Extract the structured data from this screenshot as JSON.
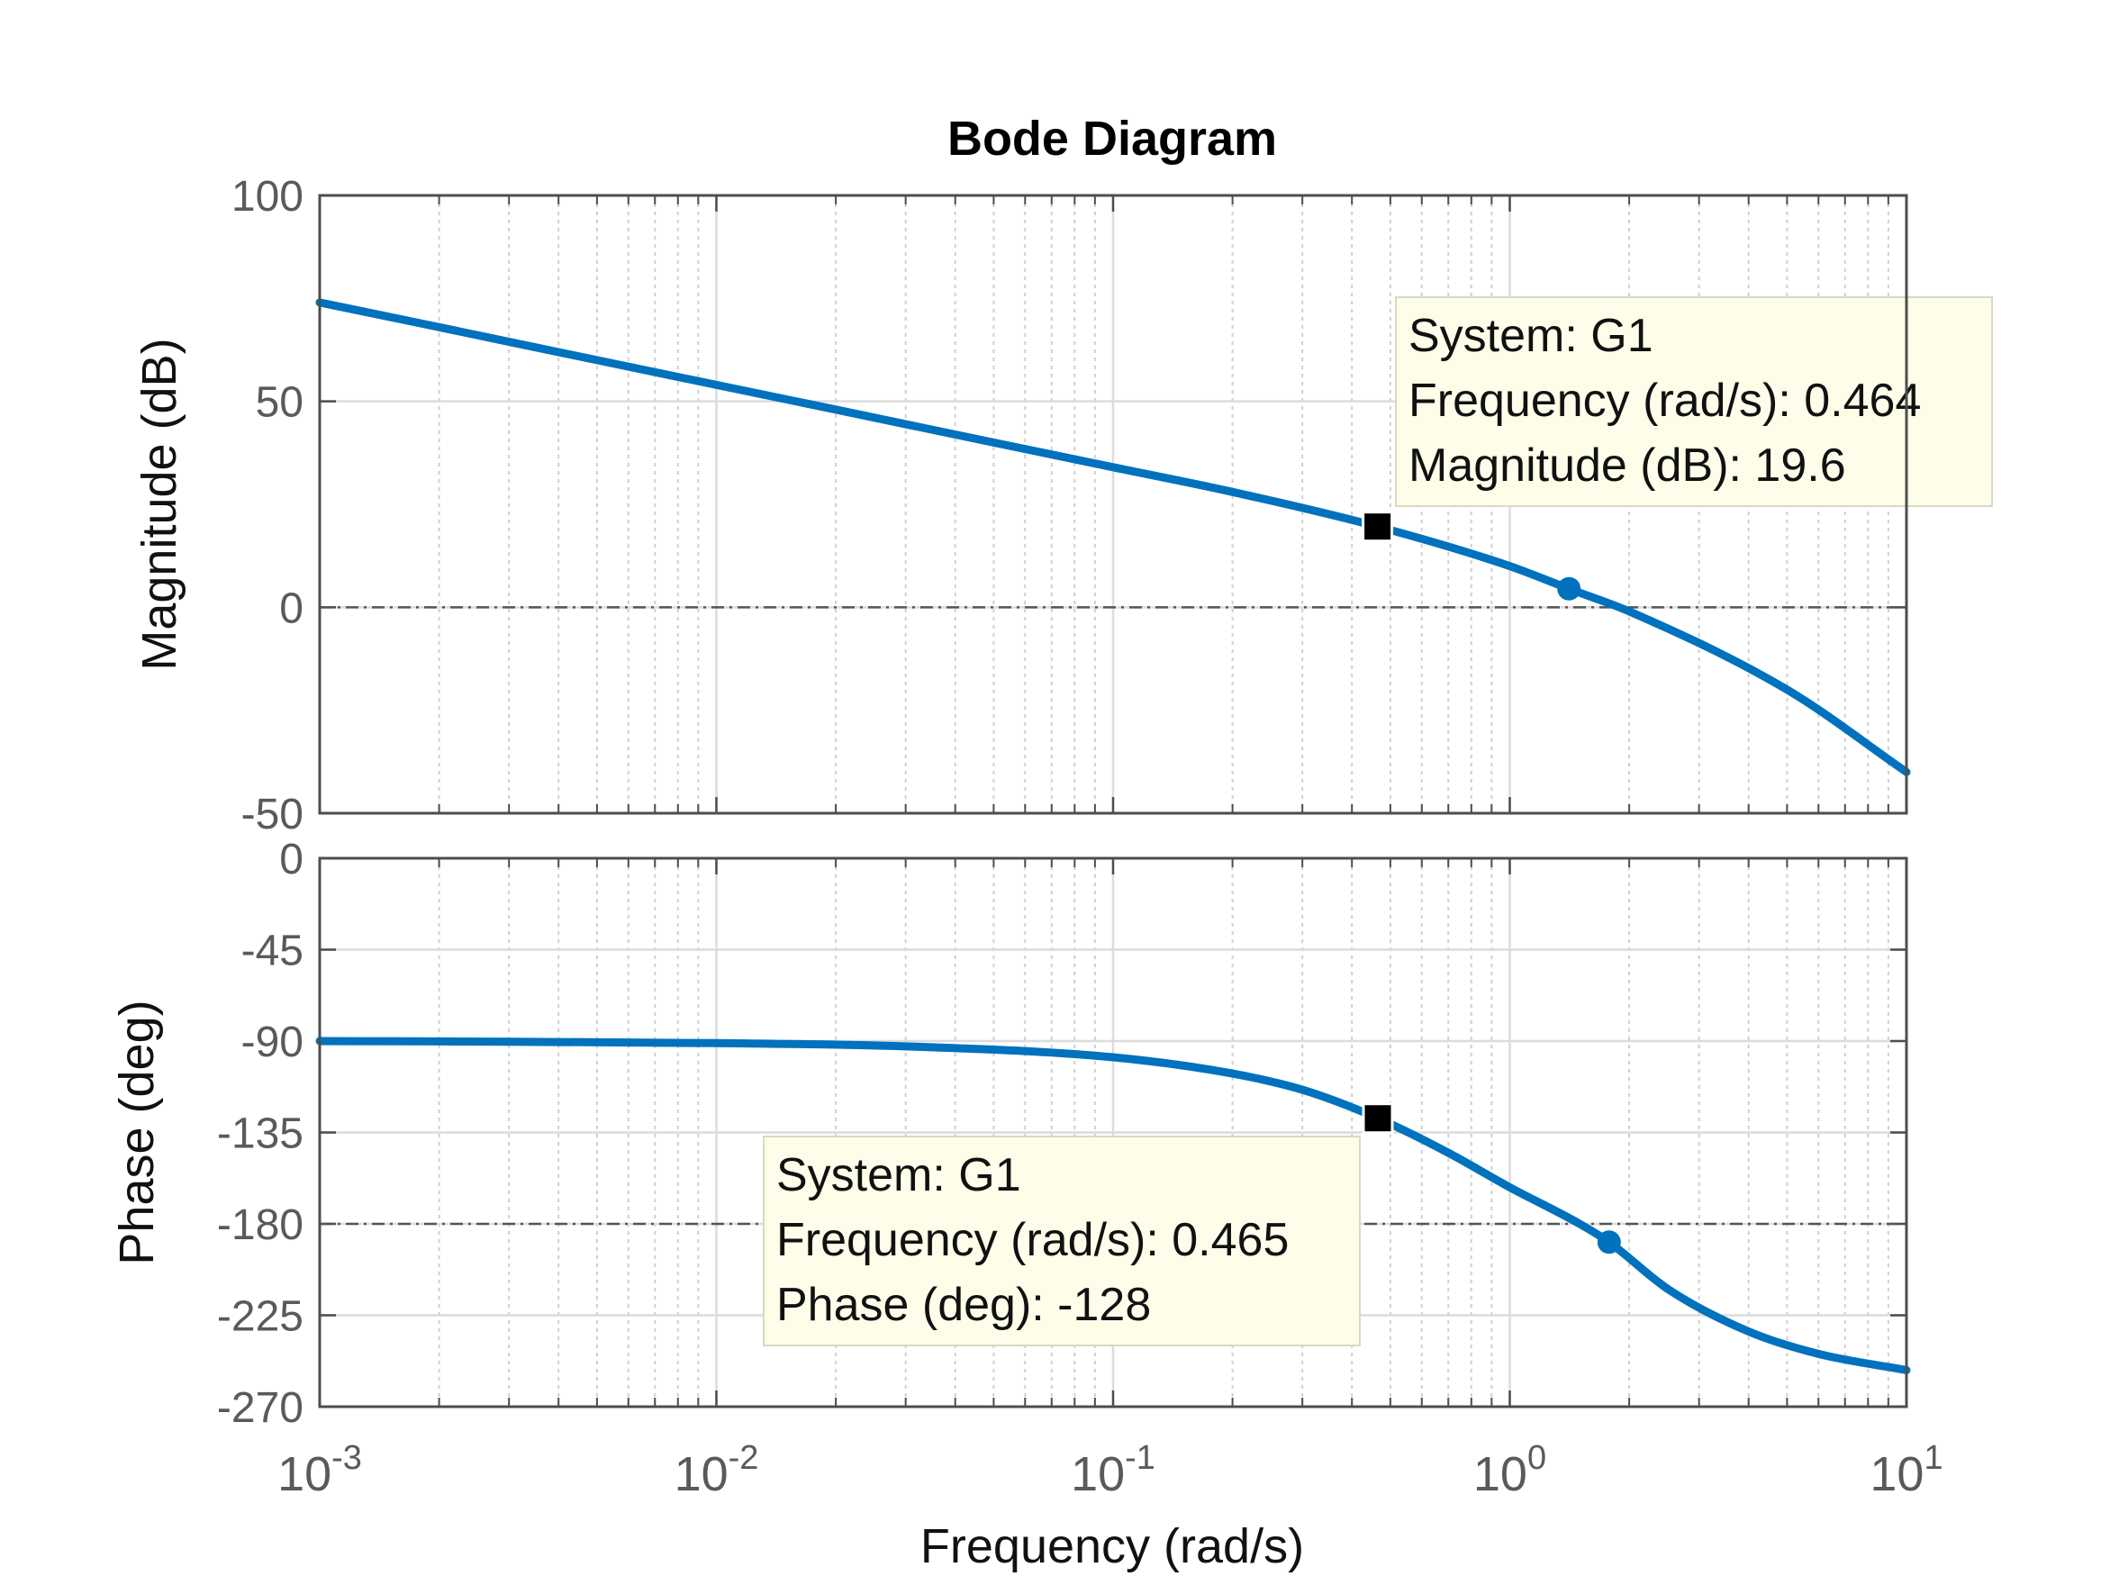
{
  "chart_data": {
    "type": "line",
    "title": "Bode Diagram",
    "xlabel": "Frequency  (rad/s)",
    "x_scale": "log",
    "xlim": [
      0.001,
      10
    ],
    "x_ticks": [
      {
        "value": 0.001,
        "base": "10",
        "exp": "-3"
      },
      {
        "value": 0.01,
        "base": "10",
        "exp": "-2"
      },
      {
        "value": 0.1,
        "base": "10",
        "exp": "-1"
      },
      {
        "value": 1,
        "base": "10",
        "exp": "0"
      },
      {
        "value": 10,
        "base": "10",
        "exp": "1"
      }
    ],
    "grid": true,
    "color": "#0072BD",
    "subplots": [
      {
        "name": "magnitude",
        "ylabel": "Magnitude (dB)",
        "ylim": [
          -50,
          100
        ],
        "y_ticks": [
          -50,
          0,
          50,
          100
        ],
        "reference_line": 0,
        "series": [
          {
            "x": [
              0.001,
              0.002,
              0.005,
              0.01,
              0.02,
              0.05,
              0.1,
              0.2,
              0.464,
              1,
              1.41,
              2,
              5,
              10
            ],
            "y": [
              74,
              68,
              60,
              54,
              48,
              40,
              34,
              28,
              19.6,
              10,
              4.5,
              -1,
              -20,
              -40
            ]
          }
        ],
        "markers": [
          {
            "x": 0.464,
            "y": 19.6,
            "style": "square"
          },
          {
            "x": 1.41,
            "y": 4.5,
            "style": "dot"
          }
        ],
        "datatip": {
          "lines": [
            "System: G1",
            "Frequency (rad/s): 0.464",
            "Magnitude (dB): 19.6"
          ]
        }
      },
      {
        "name": "phase",
        "ylabel": "Phase (deg)",
        "ylim": [
          -270,
          0
        ],
        "y_ticks": [
          -270,
          -225,
          -180,
          -135,
          -90,
          -45,
          0
        ],
        "reference_line": -180,
        "series": [
          {
            "x": [
              0.001,
              0.003,
              0.01,
              0.03,
              0.1,
              0.2,
              0.3,
              0.465,
              0.7,
              1,
              1.5,
              1.78,
              2.5,
              4,
              6,
              10
            ],
            "y": [
              -90,
              -90.3,
              -91,
              -92.6,
              -98,
              -106,
              -114,
              -128,
              -145,
              -162,
              -180,
              -189,
              -212,
              -233,
              -244,
              -252
            ]
          }
        ],
        "markers": [
          {
            "x": 0.465,
            "y": -128,
            "style": "square"
          },
          {
            "x": 1.78,
            "y": -189,
            "style": "dot"
          }
        ],
        "datatip": {
          "lines": [
            "System: G1",
            "Frequency (rad/s): 0.465",
            "Phase (deg): -128"
          ]
        }
      }
    ]
  }
}
